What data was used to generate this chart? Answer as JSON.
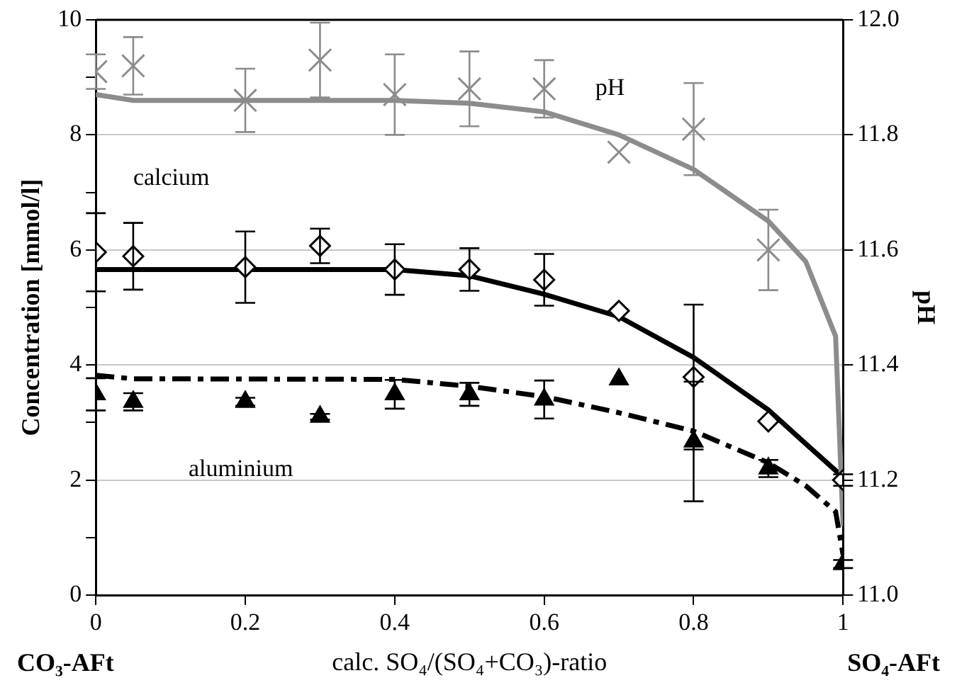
{
  "chart_data": {
    "type": "scatter",
    "xlabel": "calc. SO₄/(SO₄+CO₃)-ratio",
    "ylabel": "Concentration [mmol/l]",
    "y2label": "pH",
    "annotations": [
      "CO₃-AFt",
      "SO₄-AFt"
    ],
    "xlim": [
      0,
      1
    ],
    "xticks": [
      0,
      0.2,
      0.4,
      0.6,
      0.8,
      1
    ],
    "ylim": [
      0,
      10
    ],
    "yticks": [
      0,
      {
        "value": 1,
        "label": null
      },
      2,
      {
        "value": 3,
        "label": null
      },
      4,
      {
        "value": 5,
        "label": null
      },
      6,
      {
        "value": 7,
        "label": null
      },
      8,
      {
        "value": 9,
        "label": null
      },
      10
    ],
    "y2lim": [
      11,
      12
    ],
    "y2ticks": [
      {
        "value": 11,
        "label": "11.0"
      },
      11.2,
      11.4,
      11.6,
      11.8,
      {
        "value": 12,
        "label": "12.0"
      }
    ],
    "grid": "y",
    "legend": false,
    "series": [
      {
        "type": "line",
        "axis": "y2",
        "color": "#8c8c8c",
        "marker": "none",
        "line_style": "solid",
        "x": [
          0,
          0.05,
          0.2,
          0.4,
          0.5,
          0.6,
          0.7,
          0.8,
          0.9,
          0.95,
          0.99,
          1
        ],
        "values": [
          11.87,
          11.86,
          11.86,
          11.86,
          11.855,
          11.84,
          11.8,
          11.74,
          11.65,
          11.58,
          11.45,
          11.12
        ]
      },
      {
        "type": "line",
        "color": "#000000",
        "marker": "none",
        "line_style": "solid",
        "x": [
          0,
          0.4,
          0.5,
          0.6,
          0.7,
          0.8,
          0.9,
          0.95,
          1
        ],
        "values": [
          5.66,
          5.66,
          5.55,
          5.23,
          4.84,
          4.13,
          3.22,
          2.63,
          2.05
        ]
      },
      {
        "type": "line",
        "color": "#000000",
        "marker": "none",
        "line_style": "dashed",
        "x": [
          0,
          0.05,
          0.4,
          0.5,
          0.6,
          0.7,
          0.8,
          0.9,
          0.95,
          0.99,
          1
        ],
        "values": [
          3.82,
          3.76,
          3.75,
          3.63,
          3.45,
          3.17,
          2.85,
          2.3,
          1.9,
          1.45,
          0.7
        ]
      },
      {
        "name": "pH",
        "axis": "y2",
        "color": "#8c8c8c",
        "marker": "cross",
        "x": [
          0,
          0.05,
          0.2,
          0.3,
          0.4,
          0.5,
          0.6,
          0.7,
          0.8,
          0.9
        ],
        "values": [
          11.91,
          11.92,
          11.86,
          11.93,
          11.87,
          11.88,
          11.88,
          11.77,
          11.81,
          11.6
        ],
        "errors": [
          0.03,
          0.05,
          0.055,
          0.065,
          0.07,
          0.065,
          0.05,
          null,
          0.08,
          0.07
        ]
      },
      {
        "name": "calcium",
        "color": "#000000",
        "marker": "diamond",
        "x": [
          0,
          0.05,
          0.2,
          0.3,
          0.4,
          0.5,
          0.6,
          0.7,
          0.8,
          0.9,
          1
        ],
        "values": [
          5.96,
          5.89,
          5.7,
          6.07,
          5.66,
          5.66,
          5.48,
          4.94,
          3.79,
          3.02,
          2.0
        ],
        "errors": [
          0.68,
          0.58,
          0.62,
          0.3,
          0.44,
          0.37,
          0.45,
          null,
          1.26,
          null,
          0.1
        ]
      },
      {
        "name": "aluminium",
        "color": "#000000",
        "marker": "triangle",
        "x": [
          0,
          0.05,
          0.2,
          0.3,
          0.4,
          0.5,
          0.6,
          0.7,
          0.8,
          0.9,
          1
        ],
        "values": [
          3.49,
          3.36,
          3.36,
          3.1,
          3.49,
          3.49,
          3.4,
          3.75,
          2.67,
          2.2,
          0.54
        ],
        "errors": [
          0.28,
          0.15,
          0.07,
          0.05,
          0.25,
          0.2,
          0.33,
          null,
          1.04,
          0.15,
          0.07
        ]
      }
    ]
  }
}
